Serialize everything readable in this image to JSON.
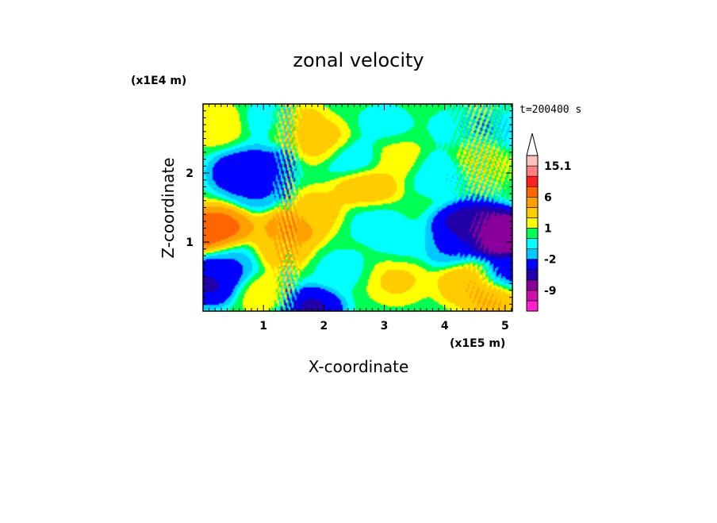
{
  "chart_data": {
    "type": "heatmap",
    "title": "zonal velocity",
    "xlabel": "X-coordinate",
    "ylabel": "Z-coordinate",
    "x_unit": "(x1E5 m)",
    "y_unit": "(x1E4 m)",
    "time_label": "t=200400 s",
    "xlim": [
      0,
      5.12
    ],
    "ylim": [
      0,
      3.0
    ],
    "x_ticks": [
      "1",
      "2",
      "3",
      "4",
      "5"
    ],
    "x_tick_values": [
      1,
      2,
      3,
      4,
      5
    ],
    "y_ticks": [
      "1",
      "2"
    ],
    "y_tick_values": [
      1,
      2
    ],
    "colorbar": {
      "labels": [
        "15.1",
        "6",
        "1",
        "-2",
        "-9"
      ],
      "label_values": [
        15.1,
        6,
        1,
        -2,
        -9
      ],
      "levels": [
        -15.1,
        -12,
        -9,
        -6,
        -4,
        -2,
        -1,
        0,
        1,
        2,
        4,
        6,
        9,
        12,
        15.1
      ],
      "colors": [
        "#ff22cc",
        "#cc11aa",
        "#880099",
        "#2200aa",
        "#0000ff",
        "#00c8ff",
        "#00ffff",
        "#00ff55",
        "#ffff00",
        "#ffcc00",
        "#ffa000",
        "#ff6600",
        "#ff2020",
        "#ff8080",
        "#ffc0c0"
      ],
      "extend": "max"
    },
    "field_description": "Zonal velocity u(x,z) contour fill",
    "features": [
      {
        "x": 0.1,
        "z": 1.15,
        "value": 9
      },
      {
        "x": 0.35,
        "z": 1.2,
        "value": 7
      },
      {
        "x": 1.45,
        "z": 1.2,
        "value": 6
      },
      {
        "x": 1.25,
        "z": 0.9,
        "value": 4
      },
      {
        "x": 1.9,
        "z": 1.45,
        "value": 3
      },
      {
        "x": 2.7,
        "z": 1.8,
        "value": 4
      },
      {
        "x": 2.0,
        "z": 2.45,
        "value": 3
      },
      {
        "x": 1.5,
        "z": 2.7,
        "value": 4
      },
      {
        "x": 3.2,
        "z": 2.2,
        "value": 2
      },
      {
        "x": 4.6,
        "z": 2.2,
        "value": 2
      },
      {
        "x": 3.2,
        "z": 0.45,
        "value": 2.5
      },
      {
        "x": 4.4,
        "z": 0.4,
        "value": 4
      },
      {
        "x": 4.85,
        "z": 0.2,
        "value": 5
      },
      {
        "x": 3.3,
        "z": 1.0,
        "value": -0.5
      },
      {
        "x": 2.8,
        "z": 1.3,
        "value": -0.6
      },
      {
        "x": 3.0,
        "z": 2.7,
        "value": -0.5
      },
      {
        "x": 4.2,
        "z": 2.65,
        "value": -0.5
      },
      {
        "x": 4.3,
        "z": 1.2,
        "value": -5
      },
      {
        "x": 4.75,
        "z": 1.15,
        "value": -8
      },
      {
        "x": 4.95,
        "z": 1.1,
        "value": -10
      },
      {
        "x": 4.5,
        "z": 1.25,
        "value": -6
      },
      {
        "x": 4.1,
        "z": 0.95,
        "value": -2.5
      },
      {
        "x": 0.6,
        "z": 2.0,
        "value": -4
      },
      {
        "x": 1.0,
        "z": 2.1,
        "value": -3
      },
      {
        "x": 0.9,
        "z": 1.75,
        "value": -2.5
      },
      {
        "x": 0.1,
        "z": 0.4,
        "value": -5
      },
      {
        "x": 0.35,
        "z": 0.6,
        "value": -4
      },
      {
        "x": 0.55,
        "z": 0.75,
        "value": -1.5
      },
      {
        "x": 1.8,
        "z": 0.05,
        "value": -5
      },
      {
        "x": 1.2,
        "z": 2.75,
        "value": -1.5
      },
      {
        "x": 2.5,
        "z": 2.2,
        "value": -1.5
      },
      {
        "x": 5.05,
        "z": 2.6,
        "value": -1
      },
      {
        "x": 1.0,
        "z": 0.3,
        "value": 2
      },
      {
        "x": 5.05,
        "z": 0.5,
        "value": -4
      },
      {
        "x": 3.9,
        "z": 2.0,
        "value": -1.2
      },
      {
        "x": 2.3,
        "z": 0.6,
        "value": -0.5
      },
      {
        "x": 0.2,
        "z": 2.7,
        "value": 2
      }
    ]
  }
}
